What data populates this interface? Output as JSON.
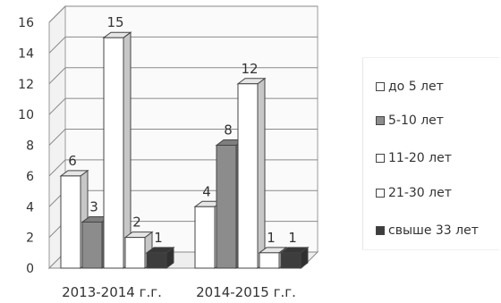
{
  "chart_data": {
    "type": "bar",
    "categories": [
      "2013-2014 г.г.",
      "2014-2015 г.г."
    ],
    "series": [
      {
        "name": "до 5 лет",
        "values": [
          6,
          4
        ],
        "color": "#ffffff"
      },
      {
        "name": "5-10 лет",
        "values": [
          3,
          8
        ],
        "color": "#8c8c8c"
      },
      {
        "name": "11-20 лет",
        "values": [
          15,
          12
        ],
        "color": "#ffffff"
      },
      {
        "name": "21-30 лет",
        "values": [
          2,
          1
        ],
        "color": "#ffffff"
      },
      {
        "name": "свыше 33 лет",
        "values": [
          1,
          1
        ],
        "color": "#3d3d3d"
      }
    ],
    "yticks": [
      "0",
      "2",
      "4",
      "6",
      "8",
      "10",
      "12",
      "14",
      "16"
    ],
    "ylim": [
      0,
      16
    ],
    "grid": true,
    "legend_position": "right",
    "title": "",
    "xlabel": "",
    "ylabel": ""
  }
}
